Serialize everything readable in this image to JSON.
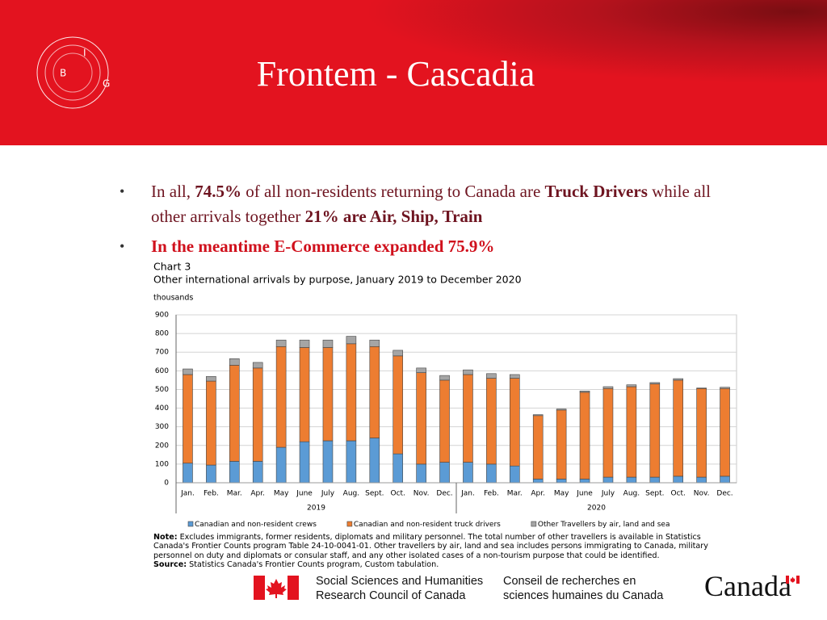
{
  "header": {
    "title": "Frontem - Cascadia",
    "logo": [
      "B",
      "I",
      "G"
    ]
  },
  "bullets": [
    {
      "color": "#6e1420",
      "segments": [
        {
          "text": "In all, ",
          "bold": false
        },
        {
          "text": "74.5%",
          "bold": true
        },
        {
          "text": " of all non-residents returning to Canada are ",
          "bold": false
        },
        {
          "text": "Truck Drivers",
          "bold": true
        },
        {
          "text": " while all other arrivals together ",
          "bold": false
        },
        {
          "text": "21% are Air, Ship, Train",
          "bold": true
        }
      ]
    },
    {
      "color": "#d0101c",
      "segments": [
        {
          "text": "In the meantime E-Commerce expanded 75.9%",
          "bold": true
        }
      ]
    }
  ],
  "chart_data": {
    "type": "bar",
    "stacked": true,
    "title": "Chart 3",
    "subtitle": "Other international arrivals by purpose, January 2019 to December 2020",
    "y_unit": "thousands",
    "categories": [
      "Jan.",
      "Feb.",
      "Mar.",
      "Apr.",
      "May",
      "June",
      "July",
      "Aug.",
      "Sept.",
      "Oct.",
      "Nov.",
      "Dec.",
      "Jan.",
      "Feb.",
      "Mar.",
      "Apr.",
      "May",
      "June",
      "July",
      "Aug.",
      "Sept.",
      "Oct.",
      "Nov.",
      "Dec."
    ],
    "x_groups": [
      "2019",
      "2020"
    ],
    "series": [
      {
        "name": "Canadian and non-resident crews",
        "color": "#5b9bd5",
        "values": [
          105,
          95,
          115,
          115,
          190,
          220,
          225,
          225,
          240,
          155,
          100,
          110,
          110,
          100,
          90,
          20,
          20,
          20,
          30,
          30,
          30,
          35,
          30,
          35
        ]
      },
      {
        "name": "Canadian and non-resident truck drivers",
        "color": "#ed7d31",
        "values": [
          475,
          450,
          515,
          500,
          540,
          505,
          500,
          520,
          490,
          525,
          490,
          440,
          470,
          460,
          470,
          340,
          370,
          465,
          475,
          485,
          500,
          515,
          475,
          470
        ]
      },
      {
        "name": "Other Travellers by air, land and sea",
        "color": "#a5a5a5",
        "values": [
          30,
          25,
          35,
          30,
          35,
          40,
          40,
          40,
          35,
          30,
          25,
          25,
          25,
          25,
          20,
          5,
          5,
          7,
          10,
          10,
          7,
          8,
          3,
          7
        ]
      }
    ],
    "ylim": [
      0,
      900
    ],
    "yticks": [
      0,
      100,
      200,
      300,
      400,
      500,
      600,
      700,
      800,
      900
    ],
    "grid": true,
    "note_label": "Note:",
    "note": "Excludes immigrants, former residents, diplomats and military personnel. The total number of other travellers is available in Statistics Canada's Frontier Counts program Table 24-10-0041-01. Other travellers by air, land and sea includes persons immigrating to Canada, military personnel on duty and diplomats or consular staff, and any other isolated cases of a non-tourism purpose that could be identified.",
    "source_label": "Source:",
    "source": "Statistics Canada's Frontier Counts program, Custom tabulation."
  },
  "footer": {
    "english": [
      "Social Sciences and Humanities",
      "Research Council of Canada"
    ],
    "french": [
      "Conseil de recherches en",
      "sciences humaines du Canada"
    ],
    "wordmark": "Canada"
  }
}
